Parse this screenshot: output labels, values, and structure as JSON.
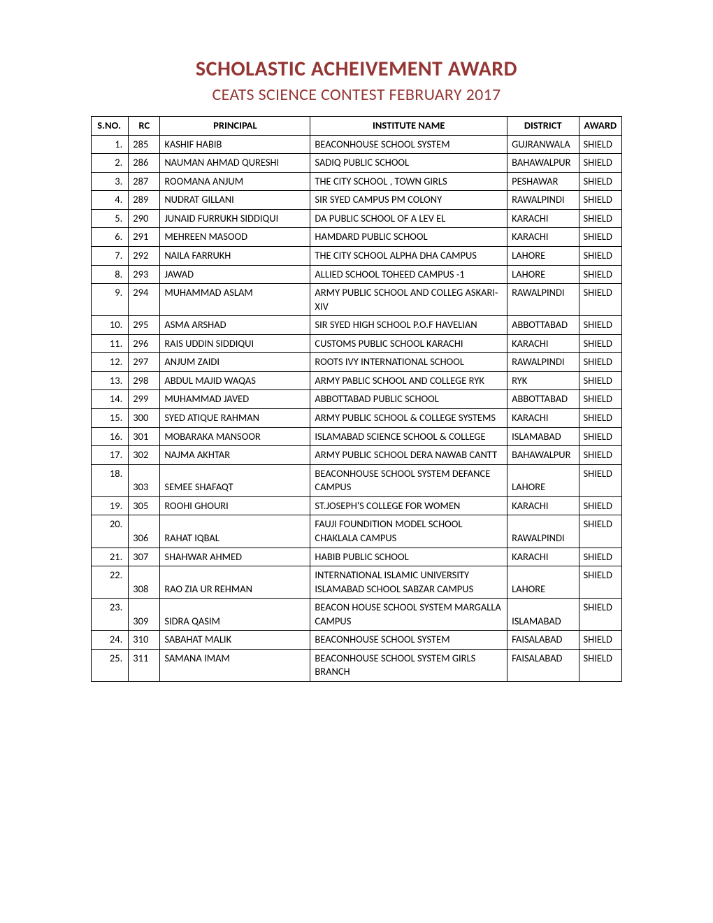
{
  "header": {
    "title": "SCHOLASTIC ACHEIVEMENT AWARD",
    "subtitle": "CEATS SCIENCE CONTEST FEBRUARY 2017"
  },
  "table": {
    "columns": {
      "sno": "S.NO.",
      "rc": "RC",
      "principal": "PRINCIPAL",
      "institute": "INSTITUTE NAME",
      "district": "DISTRICT",
      "award": "AWARD"
    },
    "rows": [
      {
        "sno": "1.",
        "rc": "285",
        "principal": "KASHIF HABIB",
        "institute": "BEACONHOUSE SCHOOL SYSTEM",
        "district": "GUJRANWALA",
        "award": "SHIELD",
        "multiline": false
      },
      {
        "sno": "2.",
        "rc": "286",
        "principal": "NAUMAN AHMAD QURESHI",
        "institute": "SADIQ PUBLIC SCHOOL",
        "district": "BAHAWALPUR",
        "award": "SHIELD",
        "multiline": false
      },
      {
        "sno": "3.",
        "rc": "287",
        "principal": "ROOMANA ANJUM",
        "institute": "THE CITY SCHOOL , TOWN GIRLS",
        "district": "PESHAWAR",
        "award": "SHIELD",
        "multiline": false
      },
      {
        "sno": "4.",
        "rc": "289",
        "principal": "NUDRAT GILLANI",
        "institute": "SIR SYED CAMPUS PM COLONY",
        "district": "RAWALPINDI",
        "award": "SHIELD",
        "multiline": false
      },
      {
        "sno": "5.",
        "rc": "290",
        "principal": "JUNAID FURRUKH SIDDIQUI",
        "institute": "DA PUBLIC SCHOOL OF A LEV EL",
        "district": "KARACHI",
        "award": "SHIELD",
        "multiline": false
      },
      {
        "sno": "6.",
        "rc": "291",
        "principal": "MEHREEN MASOOD",
        "institute": "HAMDARD PUBLIC SCHOOL",
        "district": "KARACHI",
        "award": "SHIELD",
        "multiline": false
      },
      {
        "sno": "7.",
        "rc": "292",
        "principal": "NAILA FARRUKH",
        "institute": "THE CITY SCHOOL ALPHA DHA CAMPUS",
        "district": "LAHORE",
        "award": "SHIELD",
        "multiline": false
      },
      {
        "sno": "8.",
        "rc": "293",
        "principal": "JAWAD",
        "institute": "ALLIED SCHOOL TOHEED CAMPUS -1",
        "district": "LAHORE",
        "award": "SHIELD",
        "multiline": false
      },
      {
        "sno": "9.",
        "rc": "294",
        "principal": "MUHAMMAD ASLAM",
        "institute": "ARMY PUBLIC SCHOOL AND COLLEG ASKARI-XIV",
        "district": "RAWALPINDI",
        "award": "SHIELD",
        "multiline": false
      },
      {
        "sno": "10.",
        "rc": "295",
        "principal": "ASMA ARSHAD",
        "institute": "SIR SYED HIGH SCHOOL P.O.F HAVELIAN",
        "district": "ABBOTTABAD",
        "award": "SHIELD",
        "multiline": false
      },
      {
        "sno": "11.",
        "rc": "296",
        "principal": "RAIS UDDIN SIDDIQUI",
        "institute": "CUSTOMS PUBLIC SCHOOL KARACHI",
        "district": "KARACHI",
        "award": "SHIELD",
        "multiline": false
      },
      {
        "sno": "12.",
        "rc": "297",
        "principal": "ANJUM ZAIDI",
        "institute": "ROOTS IVY INTERNATIONAL SCHOOL",
        "district": "RAWALPINDI",
        "award": "SHIELD",
        "multiline": false
      },
      {
        "sno": "13.",
        "rc": "298",
        "principal": "ABDUL MAJID WAQAS",
        "institute": "ARMY PABLIC SCHOOL AND COLLEGE RYK",
        "district": "RYK",
        "award": "SHIELD",
        "multiline": false
      },
      {
        "sno": "14.",
        "rc": "299",
        "principal": "MUHAMMAD JAVED",
        "institute": "ABBOTTABAD PUBLIC SCHOOL",
        "district": "ABBOTTABAD",
        "award": "SHIELD",
        "multiline": false
      },
      {
        "sno": "15.",
        "rc": "300",
        "principal": "SYED ATIQUE RAHMAN",
        "institute": "ARMY PUBLIC SCHOOL & COLLEGE SYSTEMS",
        "district": "KARACHI",
        "award": "SHIELD",
        "multiline": false
      },
      {
        "sno": "16.",
        "rc": "301",
        "principal": "MOBARAKA MANSOOR",
        "institute": "ISLAMABAD SCIENCE SCHOOL & COLLEGE",
        "district": "ISLAMABAD",
        "award": "SHIELD",
        "multiline": false
      },
      {
        "sno": "17.",
        "rc": "302",
        "principal": "NAJMA AKHTAR",
        "institute": "ARMY PUBLIC SCHOOL DERA NAWAB CANTT",
        "district": "BAHAWALPUR",
        "award": "SHIELD",
        "multiline": false
      },
      {
        "sno": "18.",
        "rc": "303",
        "principal": "SEMEE SHAFAQT",
        "institute": "BEACONHOUSE SCHOOL SYSTEM DEFANCE CAMPUS",
        "district": "LAHORE",
        "award": "SHIELD",
        "multiline": true
      },
      {
        "sno": "19.",
        "rc": "305",
        "principal": "ROOHI GHOURI",
        "institute": "ST.JOSEPH'S COLLEGE FOR WOMEN",
        "district": "KARACHI",
        "award": "SHIELD",
        "multiline": false
      },
      {
        "sno": "20.",
        "rc": "306",
        "principal": "RAHAT IQBAL",
        "institute": "FAUJI FOUNDITION MODEL SCHOOL CHAKLALA CAMPUS",
        "district": "RAWALPINDI",
        "award": "SHIELD",
        "multiline": true
      },
      {
        "sno": "21.",
        "rc": "307",
        "principal": "SHAHWAR AHMED",
        "institute": "HABIB PUBLIC SCHOOL",
        "district": "KARACHI",
        "award": "SHIELD",
        "multiline": false
      },
      {
        "sno": "22.",
        "rc": "308",
        "principal": "RAO ZIA UR REHMAN",
        "institute": "INTERNATIONAL ISLAMIC UNIVERSITY ISLAMABAD SCHOOL SABZAR CAMPUS",
        "district": "LAHORE",
        "award": "SHIELD",
        "multiline": true
      },
      {
        "sno": "23.",
        "rc": "309",
        "principal": "SIDRA QASIM",
        "institute": "BEACON HOUSE SCHOOL SYSTEM MARGALLA CAMPUS",
        "district": "ISLAMABAD",
        "award": "SHIELD",
        "multiline": true
      },
      {
        "sno": "24.",
        "rc": "310",
        "principal": "SABAHAT MALIK",
        "institute": "BEACONHOUSE SCHOOL SYSTEM",
        "district": "FAISALABAD",
        "award": "SHIELD",
        "multiline": false
      },
      {
        "sno": "25.",
        "rc": "311",
        "principal": "SAMANA IMAM",
        "institute": "BEACONHOUSE SCHOOL SYSTEM GIRLS BRANCH",
        "district": "FAISALABAD",
        "award": "SHIELD",
        "multiline": false
      }
    ]
  },
  "styling": {
    "title_color": "#943634",
    "title_fontsize": 30,
    "subtitle_fontsize": 24,
    "body_fontsize": 14.5,
    "border_color": "#000000",
    "background_color": "#ffffff"
  }
}
